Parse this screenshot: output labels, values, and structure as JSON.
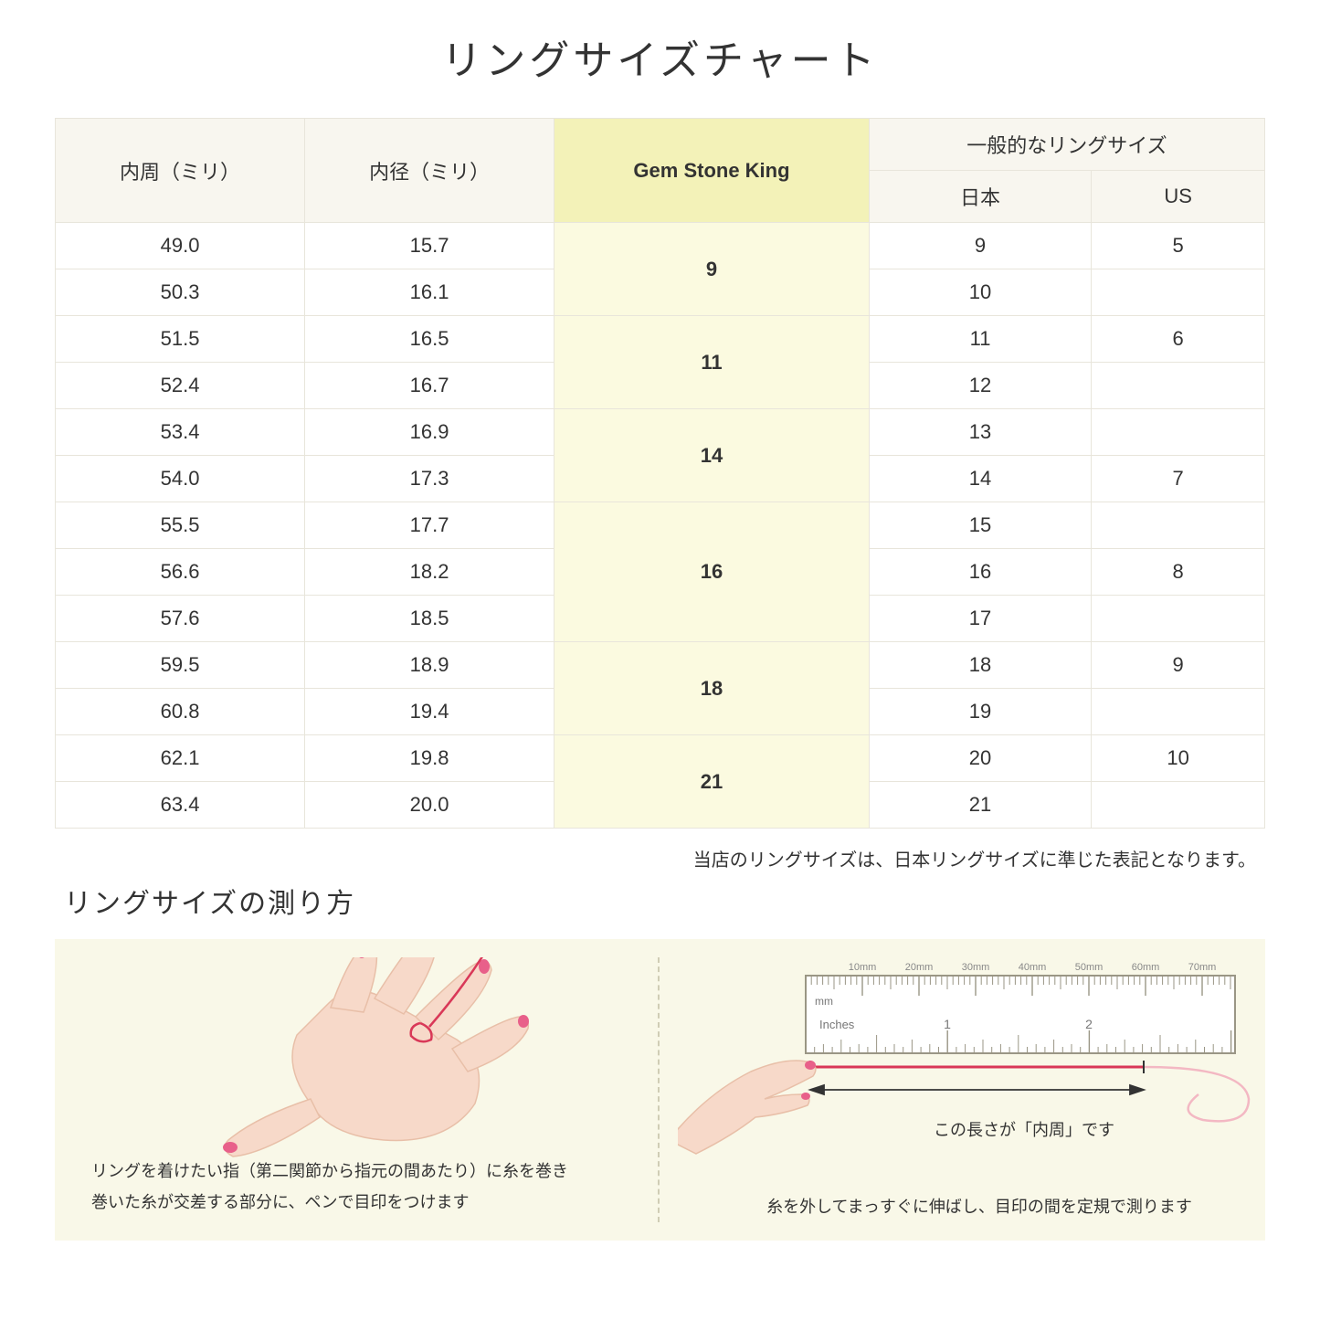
{
  "title": "リングサイズチャート",
  "table": {
    "headers": {
      "col1": "内周（ミリ）",
      "col2": "内径（ミリ）",
      "col3": "Gem Stone King",
      "col4_group": "一般的なリングサイズ",
      "col4a": "日本",
      "col4b": "US"
    },
    "groups": [
      {
        "gsk": "9",
        "rows": [
          {
            "c": "49.0",
            "d": "15.7",
            "jp": "9",
            "us": "5"
          },
          {
            "c": "50.3",
            "d": "16.1",
            "jp": "10",
            "us": ""
          }
        ]
      },
      {
        "gsk": "11",
        "rows": [
          {
            "c": "51.5",
            "d": "16.5",
            "jp": "11",
            "us": "6"
          },
          {
            "c": "52.4",
            "d": "16.7",
            "jp": "12",
            "us": ""
          }
        ]
      },
      {
        "gsk": "14",
        "rows": [
          {
            "c": "53.4",
            "d": "16.9",
            "jp": "13",
            "us": ""
          },
          {
            "c": "54.0",
            "d": "17.3",
            "jp": "14",
            "us": "7"
          }
        ]
      },
      {
        "gsk": "16",
        "rows": [
          {
            "c": "55.5",
            "d": "17.7",
            "jp": "15",
            "us": ""
          },
          {
            "c": "56.6",
            "d": "18.2",
            "jp": "16",
            "us": "8"
          },
          {
            "c": "57.6",
            "d": "18.5",
            "jp": "17",
            "us": ""
          }
        ]
      },
      {
        "gsk": "18",
        "rows": [
          {
            "c": "59.5",
            "d": "18.9",
            "jp": "18",
            "us": "9"
          },
          {
            "c": "60.8",
            "d": "19.4",
            "jp": "19",
            "us": ""
          }
        ]
      },
      {
        "gsk": "21",
        "rows": [
          {
            "c": "62.1",
            "d": "19.8",
            "jp": "20",
            "us": "10"
          },
          {
            "c": "63.4",
            "d": "20.0",
            "jp": "21",
            "us": ""
          }
        ]
      }
    ]
  },
  "note": "当店のリングサイズは、日本リングサイズに準じた表記となります。",
  "subtitle": "リングサイズの測り方",
  "measure": {
    "left_caption_l1": "リングを着けたい指（第二関節から指元の間あたり）に糸を巻き",
    "left_caption_l2": "巻いた糸が交差する部分に、ペンで目印をつけます",
    "right_label": "この長さが「内周」です",
    "right_caption": "糸を外してまっすぐに伸ばし、目印の間を定規で測ります",
    "ruler_mm": "mm",
    "ruler_inches": "Inches",
    "ruler_mm_labels": [
      "10mm",
      "20mm",
      "30mm",
      "40mm",
      "50mm",
      "60mm",
      "70mm"
    ],
    "ruler_inch_labels": [
      "1",
      "2"
    ]
  },
  "colors": {
    "header_bg": "#f8f6ef",
    "highlight_header_bg": "#f3f2b8",
    "highlight_cell_bg": "#fbfae0",
    "border": "#e8e5db",
    "panel_bg": "#f9f8e8",
    "skin": "#f7d9c9",
    "skin_dark": "#e8bfa8",
    "nail": "#e8608a",
    "thread": "#d93858",
    "ruler_border": "#9a9685"
  }
}
